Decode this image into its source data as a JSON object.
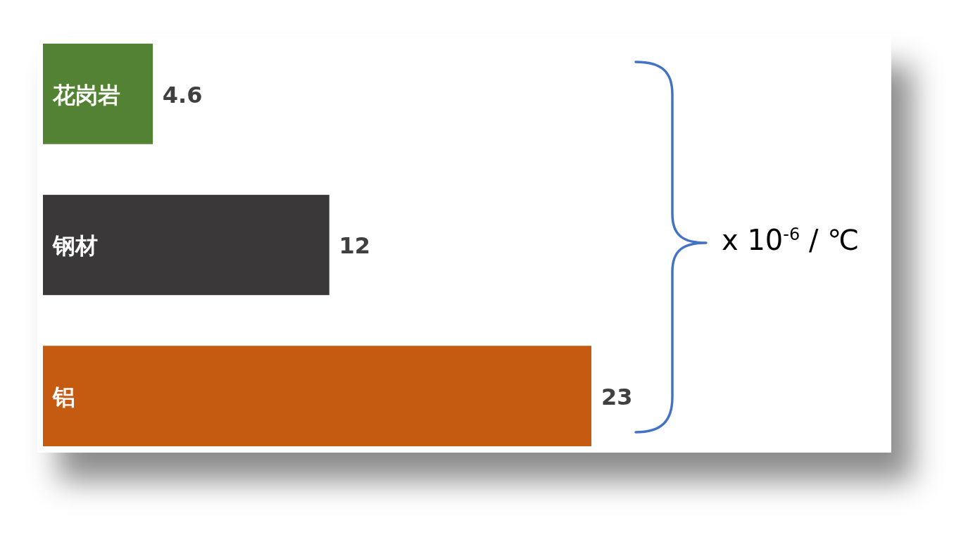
{
  "chart_data": {
    "type": "bar",
    "orientation": "horizontal",
    "categories": [
      "花岗岩",
      "钢材",
      "铝"
    ],
    "values": [
      4.6,
      12,
      23
    ],
    "colors": [
      "#548235",
      "#3a3839",
      "#c55a11"
    ],
    "data_labels": true,
    "annotations": [
      "x 10$^{-6}$ / ℃"
    ]
  }
}
